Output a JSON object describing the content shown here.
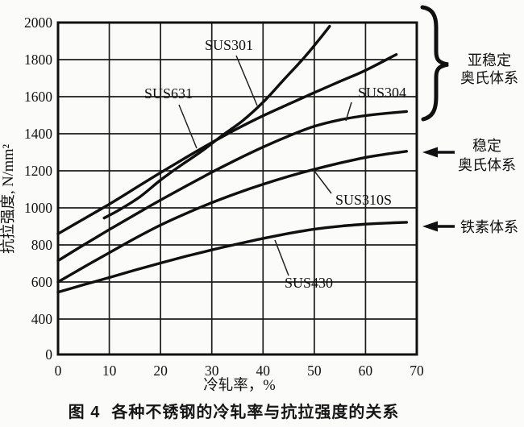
{
  "figure": {
    "caption_fig_label": "图 4",
    "caption_title": "各种不锈钢的冷轧率与抗拉强度的关系"
  },
  "chart_data": {
    "type": "line",
    "title": "",
    "xlabel": "冷轧率，%",
    "ylabel": "抗拉强度, N/mm²",
    "x_ticks": [
      0,
      10,
      20,
      30,
      40,
      50,
      60,
      70
    ],
    "y_ticks": [
      0,
      400,
      600,
      800,
      1000,
      1200,
      1400,
      1600,
      1800,
      2000
    ],
    "x_range": [
      0,
      70
    ],
    "y_range_drawn": [
      0,
      2000
    ],
    "y_axis_break": "0-400 compressed into a single division",
    "grid": "on",
    "legend_position": "labels-on-curves",
    "series": [
      {
        "name": "SUS301",
        "group": "metastable-austenitic",
        "points": [
          [
            9,
            945
          ],
          [
            12,
            990
          ],
          [
            16,
            1060
          ],
          [
            20,
            1150
          ],
          [
            24,
            1230
          ],
          [
            28,
            1305
          ],
          [
            32,
            1390
          ],
          [
            36,
            1470
          ],
          [
            40,
            1570
          ],
          [
            44,
            1690
          ],
          [
            48,
            1810
          ],
          [
            51,
            1910
          ],
          [
            53,
            1980
          ]
        ]
      },
      {
        "name": "SUS631",
        "group": "metastable-austenitic",
        "points": [
          [
            0,
            860
          ],
          [
            5,
            940
          ],
          [
            10,
            1020
          ],
          [
            15,
            1105
          ],
          [
            20,
            1190
          ],
          [
            25,
            1272
          ],
          [
            30,
            1352
          ],
          [
            35,
            1428
          ],
          [
            40,
            1497
          ],
          [
            45,
            1560
          ],
          [
            50,
            1622
          ],
          [
            55,
            1682
          ],
          [
            60,
            1742
          ],
          [
            66,
            1828
          ]
        ]
      },
      {
        "name": "SUS304",
        "group": "metastable-austenitic",
        "points": [
          [
            0,
            715
          ],
          [
            5,
            800
          ],
          [
            10,
            883
          ],
          [
            15,
            963
          ],
          [
            20,
            1042
          ],
          [
            25,
            1118
          ],
          [
            30,
            1192
          ],
          [
            35,
            1262
          ],
          [
            40,
            1328
          ],
          [
            45,
            1388
          ],
          [
            50,
            1440
          ],
          [
            55,
            1475
          ],
          [
            60,
            1498
          ],
          [
            64,
            1510
          ],
          [
            68,
            1520
          ]
        ]
      },
      {
        "name": "SUS310S",
        "group": "stable-austenitic",
        "points": [
          [
            0,
            600
          ],
          [
            5,
            680
          ],
          [
            10,
            758
          ],
          [
            15,
            835
          ],
          [
            20,
            907
          ],
          [
            25,
            970
          ],
          [
            30,
            1028
          ],
          [
            35,
            1080
          ],
          [
            40,
            1127
          ],
          [
            45,
            1170
          ],
          [
            50,
            1208
          ],
          [
            55,
            1242
          ],
          [
            60,
            1272
          ],
          [
            64,
            1290
          ],
          [
            68,
            1305
          ]
        ]
      },
      {
        "name": "SUS430",
        "group": "ferritic",
        "points": [
          [
            0,
            545
          ],
          [
            5,
            585
          ],
          [
            10,
            624
          ],
          [
            15,
            664
          ],
          [
            20,
            702
          ],
          [
            25,
            739
          ],
          [
            30,
            773
          ],
          [
            35,
            805
          ],
          [
            40,
            835
          ],
          [
            45,
            862
          ],
          [
            50,
            885
          ],
          [
            55,
            901
          ],
          [
            60,
            912
          ],
          [
            64,
            918
          ],
          [
            68,
            922
          ]
        ]
      }
    ],
    "annotations": [
      {
        "type": "brace",
        "lines": [
          "亚稳定",
          "奥氏体系"
        ],
        "targets": [
          "SUS301",
          "SUS631",
          "SUS304"
        ]
      },
      {
        "type": "arrow",
        "lines": [
          "稳定",
          "奥氏体系"
        ],
        "targets": [
          "SUS310S"
        ]
      },
      {
        "type": "arrow",
        "lines": [
          "铁素体系"
        ],
        "targets": [
          "SUS430"
        ]
      }
    ],
    "line_color": "#101010"
  }
}
